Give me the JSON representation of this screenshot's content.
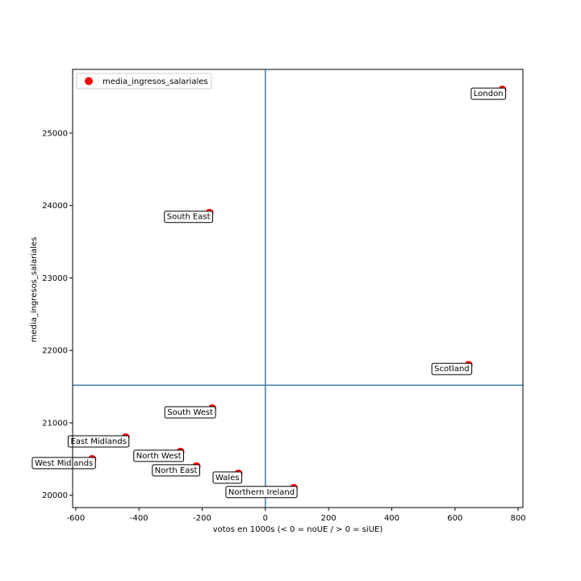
{
  "chart_data": {
    "type": "scatter",
    "xlabel": "votos en 1000s (< 0 = noUE / > 0 = siUE)",
    "ylabel": "media_ingresos_salariales",
    "xlim": [
      -610,
      815
    ],
    "ylim": [
      19830,
      25880
    ],
    "xticks": [
      -600,
      -400,
      -200,
      0,
      200,
      400,
      600,
      800
    ],
    "yticks": [
      20000,
      21000,
      22000,
      23000,
      24000,
      25000
    ],
    "xtick_labels": [
      "-600",
      "-400",
      "-200",
      "0",
      "200",
      "400",
      "600",
      "800"
    ],
    "ytick_labels": [
      "20000",
      "21000",
      "22000",
      "23000",
      "24000",
      "25000"
    ],
    "series": [
      {
        "name": "media_ingresos_salariales",
        "color": "#ff0000",
        "points": [
          {
            "label": "London",
            "x": 750,
            "y": 25600
          },
          {
            "label": "South East",
            "x": -177,
            "y": 23900
          },
          {
            "label": "Scotland",
            "x": 643,
            "y": 21800
          },
          {
            "label": "South West",
            "x": -168,
            "y": 21200
          },
          {
            "label": "East Midlands",
            "x": -442,
            "y": 20800
          },
          {
            "label": "North West",
            "x": -269,
            "y": 20600
          },
          {
            "label": "West Midlands",
            "x": -548,
            "y": 20500
          },
          {
            "label": "North East",
            "x": -218,
            "y": 20400
          },
          {
            "label": "Wales",
            "x": -85,
            "y": 20300
          },
          {
            "label": "Northern Ireland",
            "x": 90,
            "y": 20100
          }
        ]
      }
    ],
    "reference_lines": {
      "vertical_x": 0,
      "horizontal_y": 21520,
      "color": "#3a7fa8"
    },
    "grid": false,
    "legend": {
      "position": "top-left",
      "entries": [
        "media_ingresos_salariales"
      ]
    }
  }
}
